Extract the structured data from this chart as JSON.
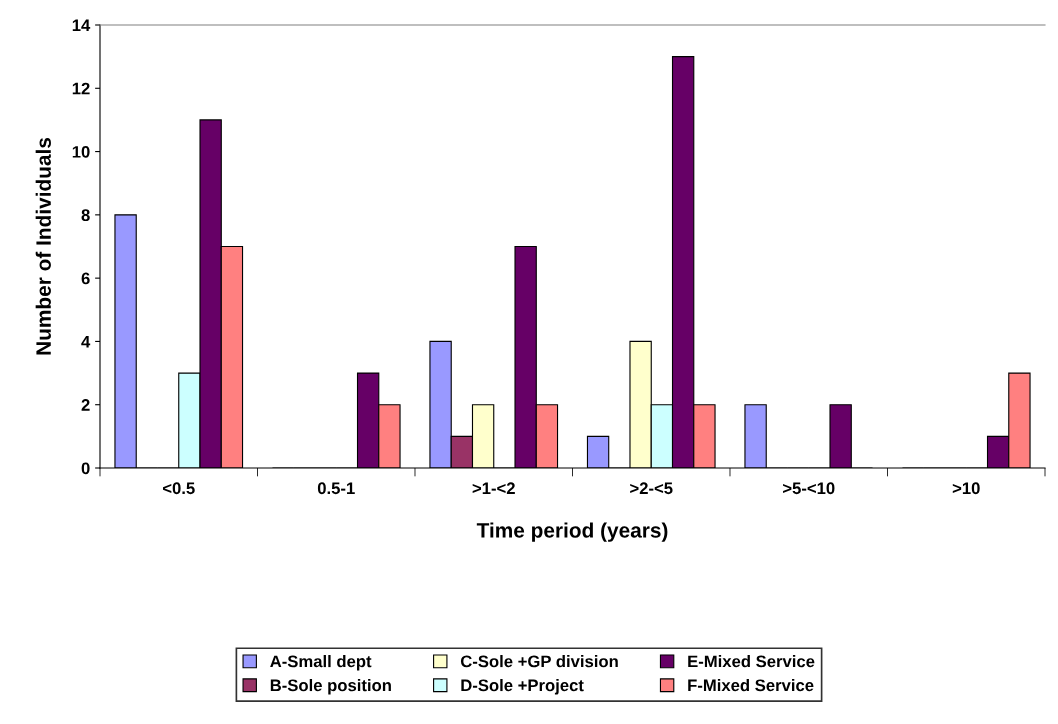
{
  "chart_data": {
    "type": "bar",
    "xlabel": "Time period (years)",
    "ylabel": "Number of Individuals",
    "categories": [
      "<0.5",
      "0.5-1",
      ">1-<2",
      ">2-<5",
      ">5-<10",
      ">10"
    ],
    "series": [
      {
        "name": "A-Small dept",
        "color": "#9999ff",
        "values": [
          8,
          0,
          4,
          1,
          2,
          0
        ]
      },
      {
        "name": "B-Sole position",
        "color": "#993366",
        "values": [
          0,
          0,
          1,
          0,
          0,
          0
        ]
      },
      {
        "name": "C-Sole +GP division",
        "color": "#ffffcc",
        "values": [
          0,
          0,
          2,
          4,
          0,
          0
        ]
      },
      {
        "name": "D-Sole +Project",
        "color": "#ccffff",
        "values": [
          3,
          0,
          0,
          2,
          0,
          0
        ]
      },
      {
        "name": "E-Mixed Service",
        "color": "#660066",
        "values": [
          11,
          3,
          7,
          13,
          2,
          1
        ]
      },
      {
        "name": "F-Mixed Service",
        "color": "#ff8080",
        "values": [
          7,
          2,
          2,
          2,
          0,
          3
        ]
      }
    ],
    "ylim": [
      0,
      14
    ],
    "yticks": [
      0,
      2,
      4,
      6,
      8,
      10,
      12,
      14
    ],
    "grid": false,
    "legend": "bottom"
  }
}
